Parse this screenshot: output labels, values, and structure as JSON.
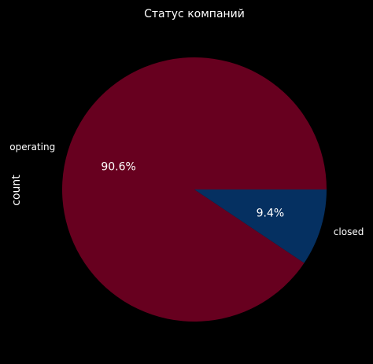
{
  "chart_data": {
    "type": "pie",
    "title": "Статус компаний",
    "ylabel": "count",
    "slices": [
      {
        "label": "operating",
        "percent": 90.6,
        "percent_label": "90.6%",
        "color": "#67001f"
      },
      {
        "label": "closed",
        "percent": 9.4,
        "percent_label": "9.4%",
        "color": "#053061"
      }
    ],
    "start_angle_deg": 0,
    "direction": "counterclockwise"
  }
}
